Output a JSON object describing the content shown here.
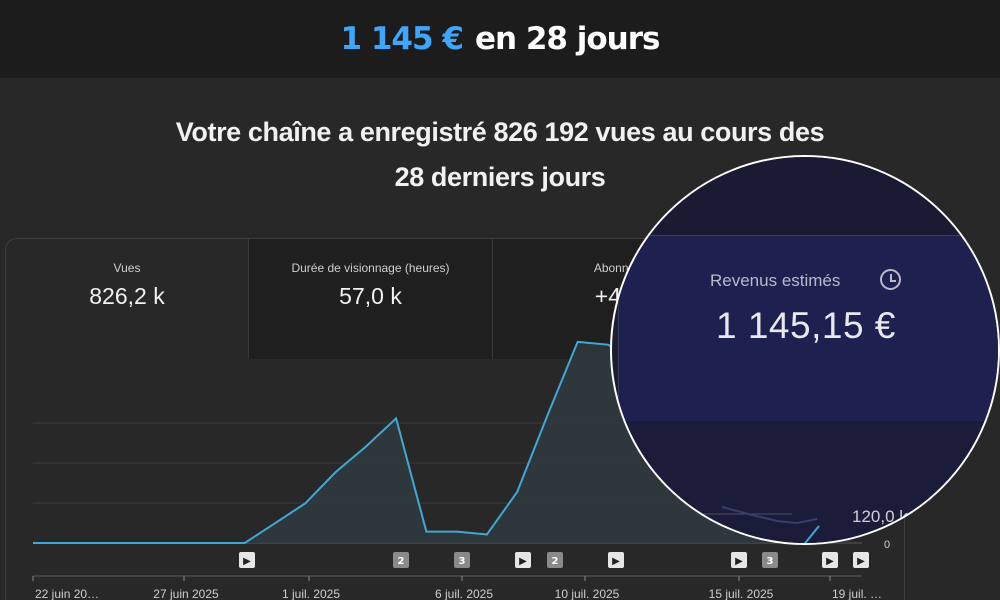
{
  "banner": {
    "amount": "1 145 €",
    "rest": "en 28 jours"
  },
  "headline": {
    "line1": "Votre chaîne a enregistré 826 192 vues au cours des",
    "line2": "28 derniers jours"
  },
  "tabs": [
    {
      "label": "Vues",
      "value": "826,2 k"
    },
    {
      "label": "Durée de visionnage (heures)",
      "value": "57,0 k"
    },
    {
      "label": "Abonnés",
      "value": "+4,0"
    }
  ],
  "magnifier": {
    "label": "Revenus estimés",
    "value": "1 145,15 €",
    "axis_label": "120,0 k",
    "icon": "clock-icon"
  },
  "colors": {
    "accent": "#3ea6ff",
    "line": "#41a7d6",
    "magnifier_bg": "#1e2050"
  },
  "chart_data": {
    "type": "area",
    "x": [
      "22 juin",
      "23 juin",
      "24 juin",
      "25 juin",
      "26 juin",
      "27 juin",
      "28 juin",
      "29 juin",
      "30 juin",
      "1 juil.",
      "2 juil.",
      "3 juil.",
      "4 juil.",
      "5 juil.",
      "6 juil.",
      "7 juil.",
      "8 juil.",
      "9 juil.",
      "10 juil.",
      "11 juil.",
      "12 juil.",
      "13 juil.",
      "14 juil.",
      "15 juil.",
      "16 juil.",
      "17 juil.",
      "18 juil.",
      "19 juil."
    ],
    "y": [
      0,
      0,
      0,
      0,
      0,
      0,
      0,
      0,
      7,
      14,
      25,
      34,
      44,
      4,
      4,
      3,
      18,
      45,
      71,
      70,
      64,
      55,
      45,
      40,
      30,
      14,
      4,
      42
    ],
    "y_tick_labels": [
      "0",
      "120,0 k"
    ],
    "x_tick_labels": [
      "22 juin 20…",
      "27 juin 2025",
      "1 juil. 2025",
      "6 juil. 2025",
      "10 juil. 2025",
      "15 juil. 2025",
      "19 juil. …"
    ],
    "markers": [
      "▶",
      "2",
      "3",
      "▶",
      "2",
      "▶",
      "▶",
      "3",
      "▶",
      "▶"
    ],
    "grid": true,
    "legend": "none"
  }
}
